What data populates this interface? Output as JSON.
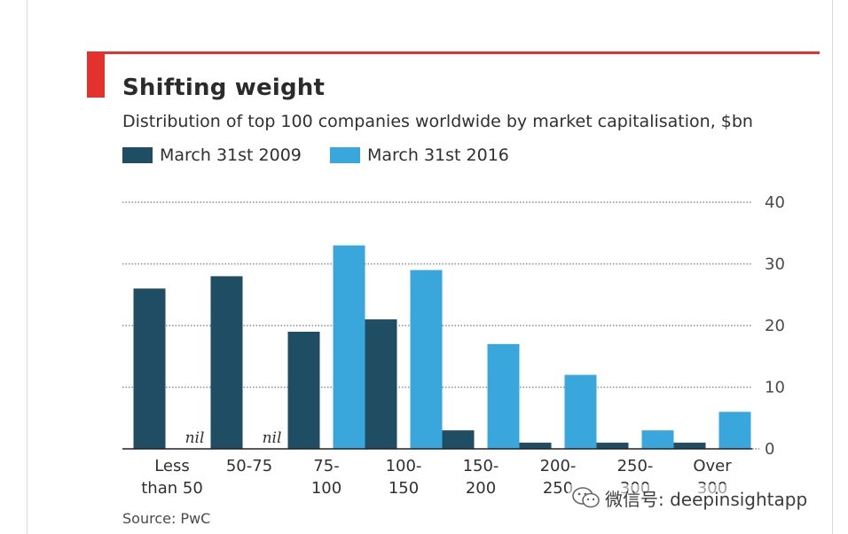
{
  "title": "Shifting weight",
  "subtitle": "Distribution of top 100 companies worldwide by market capitalisation, $bn",
  "source": "Source: PwC",
  "watermark": {
    "text": "微信号: deepinsightapp",
    "icon": "wechat-icon"
  },
  "colors": {
    "accent": "#e3312d",
    "series_2009": "#1f4d63",
    "series_2016": "#3aa7dc",
    "gridline": "#8c8c8c",
    "text": "#303030"
  },
  "chart_data": {
    "type": "bar",
    "title": "Shifting weight",
    "subtitle": "Distribution of top 100 companies worldwide by market capitalisation, $bn",
    "categories": [
      [
        "Less",
        "than 50"
      ],
      [
        "50-75"
      ],
      [
        "75-",
        "100"
      ],
      [
        "100-",
        "150"
      ],
      [
        "150-",
        "200"
      ],
      [
        "200-",
        "250"
      ],
      [
        "250-",
        "300"
      ],
      [
        "Over",
        "300"
      ]
    ],
    "series": [
      {
        "name": "March 31st 2009",
        "values": [
          26,
          28,
          19,
          21,
          3,
          1,
          1,
          1
        ]
      },
      {
        "name": "March 31st 2016",
        "values": [
          0,
          0,
          33,
          29,
          17,
          12,
          3,
          6
        ]
      }
    ],
    "annotations": [
      {
        "category_index": 0,
        "series_index": 1,
        "text": "nil"
      },
      {
        "category_index": 1,
        "series_index": 1,
        "text": "nil"
      }
    ],
    "yticks": [
      0,
      10,
      20,
      30,
      40
    ],
    "ylim": [
      0,
      40
    ],
    "xlabel": "",
    "ylabel": "",
    "y_axis_side": "right",
    "grid": true,
    "legend_position": "top-left"
  }
}
